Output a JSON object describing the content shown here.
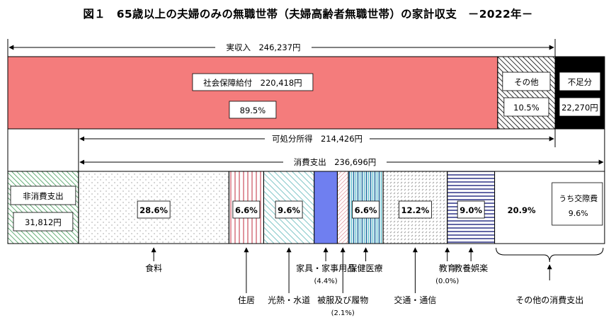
{
  "title": "図１　65歳以上の夫婦のみの無職世帯（夫婦高齢者無職世帯）の家計収支　－2022年－",
  "chart_data": {
    "type": "bar",
    "colors": {
      "social_security": "#f47c7c",
      "shortfall": "#000000",
      "grid_border": "#000000",
      "green": "#3f9a56",
      "pink": "#d87a86",
      "teal": "#7ec5c7",
      "blue": "#6f7ff0",
      "navy": "#3a3f8e",
      "gray": "#777777"
    },
    "income": {
      "total_label": "実収入",
      "total_value": "246,237円",
      "segments": [
        {
          "name": "社会保障給付",
          "amount": "220,418円",
          "share": "89.5%",
          "value": 89.5
        },
        {
          "name": "その他",
          "share": "10.5%",
          "value": 10.5
        }
      ],
      "shortfall": {
        "name": "不足分",
        "amount": "22,270円",
        "value": 9.04
      }
    },
    "disposable": {
      "label": "可処分所得",
      "value": "214,426円"
    },
    "consumption": {
      "label": "消費支出",
      "value": "236,696円"
    },
    "non_consumption": {
      "name": "非消費支出",
      "amount": "31,812円",
      "value": 12.92
    },
    "expenditure": [
      {
        "name": "食料",
        "share": "28.6%",
        "value": 28.6
      },
      {
        "name": "住居",
        "share": "6.6%",
        "value": 6.6
      },
      {
        "name": "光熱・水道",
        "share": "9.6%",
        "value": 9.6
      },
      {
        "name": "家具・家事用品",
        "share": "(4.4%)",
        "value": 4.4
      },
      {
        "name": "被服及び履物",
        "share": "(2.1%)",
        "value": 2.1
      },
      {
        "name": "保健医療",
        "share": "6.6%",
        "value": 6.6
      },
      {
        "name": "交通・通信",
        "share": "12.2%",
        "value": 12.2
      },
      {
        "name": "教育",
        "share": "(0.0%)",
        "value": 0.0
      },
      {
        "name": "教養娯楽",
        "share": "9.0%",
        "value": 9.0
      },
      {
        "name": "その他の消費支出",
        "share": "20.9%",
        "value": 20.9
      }
    ],
    "sub_item": {
      "name": "うち交際費",
      "share": "9.6%",
      "value": 9.6
    }
  }
}
